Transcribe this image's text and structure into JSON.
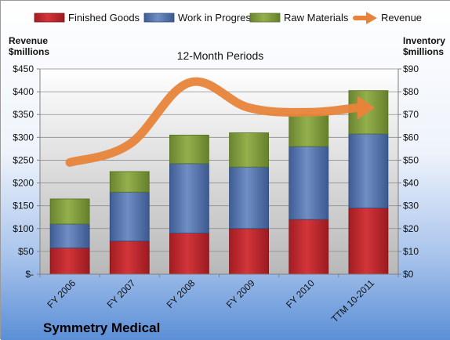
{
  "colors": {
    "finished_goods": "#c0282d",
    "work_in_progress": "#4f6fa7",
    "raw_materials": "#7f9a3a",
    "revenue": "#e8843a",
    "background_top": "#ffffff",
    "background_bottom": "#5b8fd6"
  },
  "legend": {
    "finished_goods": "Finished Goods",
    "work_in_progress": "Work in Progress",
    "raw_materials": "Raw Materials",
    "revenue": "Revenue"
  },
  "company": "Symmetry Medical",
  "chart_data": {
    "type": "bar",
    "subtitle": "12-Month Periods",
    "left_axis_title": [
      "Revenue",
      "$millions"
    ],
    "right_axis_title": [
      "Inventory",
      "$millions"
    ],
    "categories": [
      "FY 2006",
      "FY 2007",
      "FY 2008",
      "FY 2009",
      "FY 2010",
      "TTM 10-2011"
    ],
    "left_ticks": [
      "$-",
      "$50",
      "$100",
      "$150",
      "$200",
      "$250",
      "$300",
      "$350",
      "$400",
      "$450"
    ],
    "right_ticks": [
      "$0",
      "$10",
      "$20",
      "$30",
      "$40",
      "$50",
      "$60",
      "$70",
      "$80",
      "$90"
    ],
    "left_ylim": [
      0,
      450
    ],
    "right_ylim": [
      0,
      90
    ],
    "stacked": true,
    "series": [
      {
        "name": "Finished Goods",
        "axis": "right",
        "values": [
          11.5,
          14.5,
          18,
          20,
          24,
          29
        ]
      },
      {
        "name": "Work in Progress",
        "axis": "right",
        "values": [
          10.5,
          21.5,
          30.5,
          27,
          32,
          32.5
        ]
      },
      {
        "name": "Raw Materials",
        "axis": "right",
        "values": [
          11,
          9,
          12.5,
          15,
          14,
          19
        ]
      }
    ],
    "line_series": {
      "name": "Revenue",
      "axis": "left",
      "type": "line",
      "values": [
        245,
        285,
        420,
        365,
        355,
        365
      ]
    },
    "grid": true,
    "legend_position": "top"
  }
}
